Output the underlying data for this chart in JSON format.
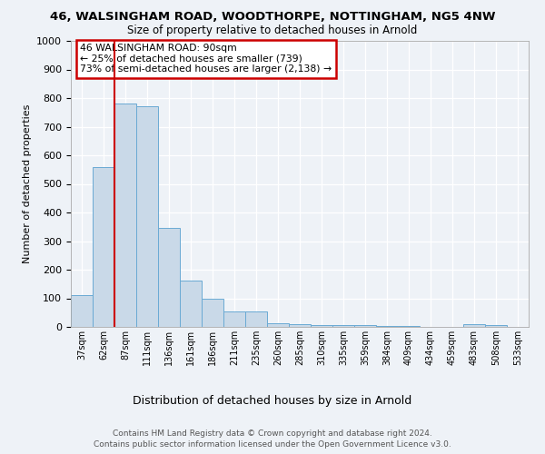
{
  "title_line1": "46, WALSINGHAM ROAD, WOODTHORPE, NOTTINGHAM, NG5 4NW",
  "title_line2": "Size of property relative to detached houses in Arnold",
  "xlabel": "Distribution of detached houses by size in Arnold",
  "ylabel": "Number of detached properties",
  "categories": [
    "37sqm",
    "62sqm",
    "87sqm",
    "111sqm",
    "136sqm",
    "161sqm",
    "186sqm",
    "211sqm",
    "235sqm",
    "260sqm",
    "285sqm",
    "310sqm",
    "335sqm",
    "359sqm",
    "384sqm",
    "409sqm",
    "434sqm",
    "459sqm",
    "483sqm",
    "508sqm",
    "533sqm"
  ],
  "values": [
    110,
    560,
    780,
    770,
    345,
    163,
    97,
    53,
    53,
    14,
    11,
    7,
    5,
    5,
    4,
    3,
    0,
    0,
    9,
    5,
    0
  ],
  "bar_color": "#c9d9e8",
  "bar_edge_color": "#6aaad4",
  "highlight_index": 2,
  "highlight_line_color": "#cc0000",
  "annotation_text": "46 WALSINGHAM ROAD: 90sqm\n← 25% of detached houses are smaller (739)\n73% of semi-detached houses are larger (2,138) →",
  "annotation_box_color": "#ffffff",
  "annotation_box_edge": "#cc0000",
  "ylim": [
    0,
    1000
  ],
  "yticks": [
    0,
    100,
    200,
    300,
    400,
    500,
    600,
    700,
    800,
    900,
    1000
  ],
  "footer_line1": "Contains HM Land Registry data © Crown copyright and database right 2024.",
  "footer_line2": "Contains public sector information licensed under the Open Government Licence v3.0.",
  "background_color": "#eef2f7",
  "plot_bg_color": "#eef2f7"
}
